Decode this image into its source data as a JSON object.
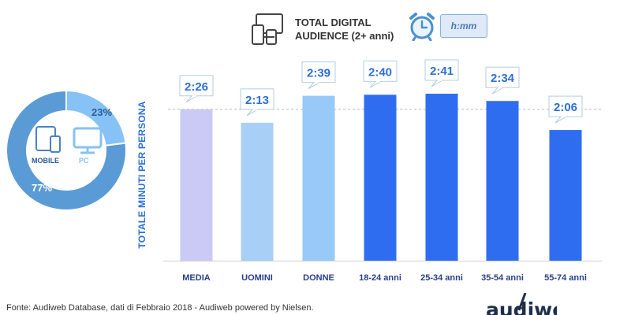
{
  "header": {
    "legend_line1": "TOTAL DIGITAL",
    "legend_line2": "AUDIENCE (2+ anni)",
    "time_unit": "h:mm"
  },
  "donut": {
    "mobile_label": "MOBILE",
    "pc_label": "PC",
    "mobile_pct": "77%",
    "pc_pct": "23%",
    "mobile_value": 77,
    "pc_value": 23,
    "colors": {
      "mobile": "#5b9bd5",
      "pc": "#86c2f5"
    }
  },
  "chart_data": {
    "type": "bar",
    "categories": [
      "MEDIA",
      "UOMINI",
      "DONNE",
      "18-24 anni",
      "25-34 anni",
      "35-54 anni",
      "55-74 anni"
    ],
    "values": [
      146,
      133,
      159,
      160,
      161,
      154,
      126
    ],
    "labels": [
      "2:26",
      "2:13",
      "2:39",
      "2:40",
      "2:41",
      "2:34",
      "2:06"
    ],
    "ylabel": "TOTALE MINUTI PER PERSONA",
    "xlabel": "",
    "ylim": [
      0,
      161
    ],
    "reference_line": 146,
    "colors": [
      "#cbcaf6",
      "#a8d0f7",
      "#98c9f8",
      "#2f6df0",
      "#2f6df0",
      "#2f6df0",
      "#2f6df0"
    ],
    "label_color": "#2f6fd6",
    "grid": false,
    "legend": "none"
  },
  "footer": {
    "source": "Fonte: Audiweb Database, dati di Febbraio 2018 - Audiweb powered by Nielsen.",
    "logo_text": "audiweb"
  }
}
